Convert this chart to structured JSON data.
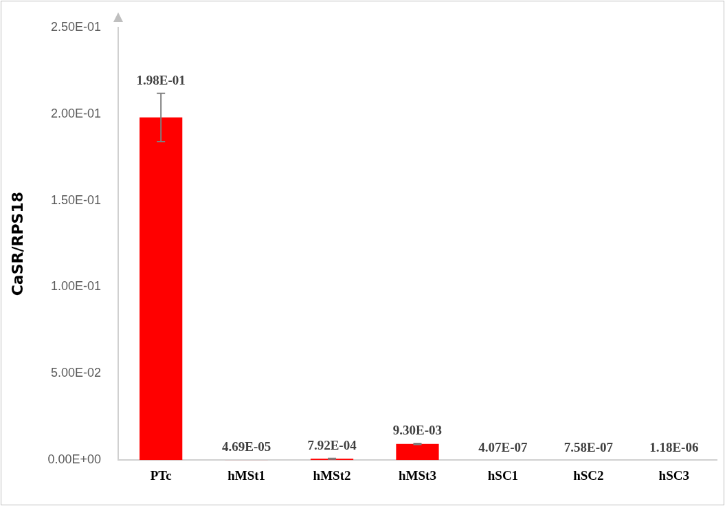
{
  "chart_data": {
    "type": "bar",
    "ylabel": "CaSR/RPS18",
    "categories": [
      "PTc",
      "hMSt1",
      "hMSt2",
      "hMSt3",
      "hSC1",
      "hSC2",
      "hSC3"
    ],
    "values": [
      0.198,
      4.69e-05,
      0.000792,
      0.0093,
      4.07e-07,
      7.58e-07,
      1.18e-06
    ],
    "value_labels": [
      "1.98E-01",
      "4.69E-05",
      "7.92E-04",
      "9.30E-03",
      "4.07E-07",
      "7.58E-07",
      "1.18E-06"
    ],
    "errors": [
      0.014,
      null,
      0.0002,
      0.0003,
      null,
      null,
      null
    ],
    "color": "#ff0000",
    "ylim": [
      0,
      0.25
    ],
    "yticks": [
      {
        "value": 0,
        "label": "0.00E+00"
      },
      {
        "value": 0.05,
        "label": "5.00E-02"
      },
      {
        "value": 0.1,
        "label": "1.00E-01"
      },
      {
        "value": 0.15,
        "label": "1.50E-01"
      },
      {
        "value": 0.2,
        "label": "2.00E-01"
      },
      {
        "value": 0.25,
        "label": "2.50E-01"
      }
    ],
    "grid": false,
    "legend": false
  }
}
